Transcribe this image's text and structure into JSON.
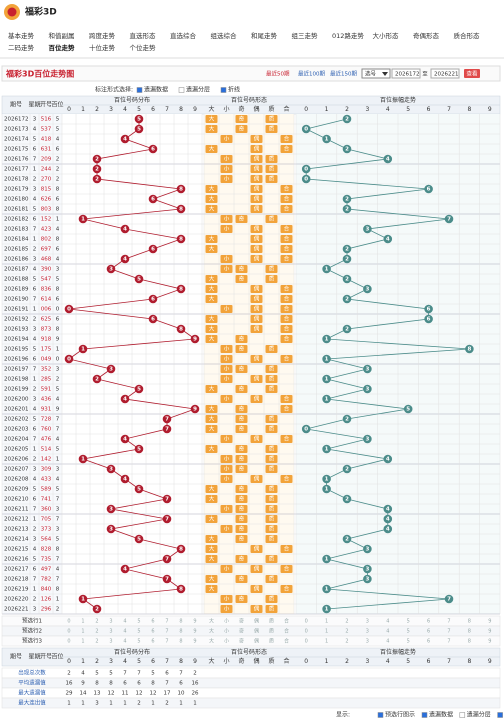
{
  "header": {
    "logo": "福彩3D"
  },
  "nav": {
    "items": [
      "基本走势",
      "和值副属",
      "跨度走势",
      "直选形态",
      "直选综合",
      "组选综合",
      "和尾走势",
      "组三走势",
      "012路走势",
      "大小形态",
      "奇偶形态",
      "质合形态",
      "二码走势",
      "百位走势",
      "十位走势",
      "个位走势"
    ],
    "per_row": 12,
    "active": 13
  },
  "toolbar": {
    "title": "福彩3D百位走势图",
    "recent": [
      "最近50期",
      "最近100期",
      "最近150期"
    ],
    "select": "选号",
    "from": "2026172",
    "to_label": "至",
    "to": "2026221",
    "button": "查看"
  },
  "options": {
    "label": "标注形式选择:",
    "items": [
      {
        "label": "遗漏数据",
        "checked": true
      },
      {
        "label": "遗漏分层",
        "checked": false
      },
      {
        "label": "折线",
        "checked": true
      }
    ]
  },
  "table": {
    "headers": [
      "期号",
      "星期",
      "开号",
      "百位"
    ],
    "groups": [
      "百位号码分布",
      "百位号码形态",
      "百位振幅走势"
    ],
    "digits": [
      0,
      1,
      2,
      3,
      4,
      5,
      6,
      7,
      8,
      9
    ],
    "forms": [
      "大",
      "小",
      "奇",
      "偶",
      "质",
      "合"
    ],
    "rows": [
      [
        2026172,
        3,
        "516",
        5,
        "大",
        "奇",
        "质",
        2
      ],
      [
        2026173,
        4,
        "537",
        5,
        "大",
        "奇",
        "质",
        0
      ],
      [
        2026174,
        5,
        "418",
        4,
        "小",
        "偶",
        "合",
        1
      ],
      [
        2026175,
        6,
        "631",
        6,
        "大",
        "偶",
        "合",
        2
      ],
      [
        2026176,
        7,
        "209",
        2,
        "小",
        "偶",
        "质",
        4
      ],
      [
        2026177,
        1,
        "244",
        2,
        "小",
        "偶",
        "质",
        0
      ],
      [
        2026178,
        2,
        "270",
        2,
        "小",
        "偶",
        "质",
        0
      ],
      [
        2026179,
        3,
        "815",
        8,
        "大",
        "偶",
        "合",
        6
      ],
      [
        2026180,
        4,
        "626",
        6,
        "大",
        "偶",
        "合",
        2
      ],
      [
        2026181,
        5,
        "803",
        8,
        "大",
        "偶",
        "合",
        2
      ],
      [
        2026182,
        6,
        "152",
        1,
        "小",
        "奇",
        "质",
        7
      ],
      [
        2026183,
        7,
        "423",
        4,
        "小",
        "偶",
        "合",
        3
      ],
      [
        2026184,
        1,
        "802",
        8,
        "大",
        "偶",
        "合",
        4
      ],
      [
        2026185,
        2,
        "697",
        6,
        "大",
        "偶",
        "合",
        2
      ],
      [
        2026186,
        3,
        "468",
        4,
        "小",
        "偶",
        "合",
        2
      ],
      [
        2026187,
        4,
        "390",
        3,
        "小",
        "奇",
        "质",
        1
      ],
      [
        2026188,
        5,
        "547",
        5,
        "大",
        "奇",
        "质",
        2
      ],
      [
        2026189,
        6,
        "836",
        8,
        "大",
        "偶",
        "合",
        3
      ],
      [
        2026190,
        7,
        "614",
        6,
        "大",
        "偶",
        "合",
        2
      ],
      [
        2026191,
        1,
        "006",
        0,
        "小",
        "偶",
        "合",
        6
      ],
      [
        2026192,
        2,
        "625",
        6,
        "大",
        "偶",
        "合",
        6
      ],
      [
        2026193,
        3,
        "873",
        8,
        "大",
        "偶",
        "合",
        2
      ],
      [
        2026194,
        4,
        "918",
        9,
        "大",
        "奇",
        "合",
        1
      ],
      [
        2026195,
        5,
        "175",
        1,
        "小",
        "奇",
        "质",
        8
      ],
      [
        2026196,
        6,
        "049",
        0,
        "小",
        "偶",
        "合",
        1
      ],
      [
        2026197,
        7,
        "352",
        3,
        "小",
        "奇",
        "质",
        3
      ],
      [
        2026198,
        1,
        "285",
        2,
        "小",
        "偶",
        "质",
        1
      ],
      [
        2026199,
        2,
        "591",
        5,
        "大",
        "奇",
        "质",
        3
      ],
      [
        2026200,
        3,
        "436",
        4,
        "小",
        "偶",
        "合",
        1
      ],
      [
        2026201,
        4,
        "931",
        9,
        "大",
        "奇",
        "合",
        5
      ],
      [
        2026202,
        5,
        "728",
        7,
        "大",
        "奇",
        "质",
        2
      ],
      [
        2026203,
        6,
        "760",
        7,
        "大",
        "奇",
        "质",
        0
      ],
      [
        2026204,
        7,
        "476",
        4,
        "小",
        "偶",
        "合",
        3
      ],
      [
        2026205,
        1,
        "514",
        5,
        "大",
        "奇",
        "质",
        1
      ],
      [
        2026206,
        2,
        "142",
        1,
        "小",
        "奇",
        "质",
        4
      ],
      [
        2026207,
        3,
        "309",
        3,
        "小",
        "奇",
        "质",
        2
      ],
      [
        2026208,
        4,
        "433",
        4,
        "小",
        "偶",
        "合",
        1
      ],
      [
        2026209,
        5,
        "589",
        5,
        "大",
        "奇",
        "质",
        1
      ],
      [
        2026210,
        6,
        "741",
        7,
        "大",
        "奇",
        "质",
        2
      ],
      [
        2026211,
        7,
        "360",
        3,
        "小",
        "奇",
        "质",
        4
      ],
      [
        2026212,
        1,
        "705",
        7,
        "大",
        "奇",
        "质",
        4
      ],
      [
        2026213,
        2,
        "373",
        3,
        "小",
        "奇",
        "质",
        4
      ],
      [
        2026214,
        3,
        "564",
        5,
        "大",
        "奇",
        "质",
        2
      ],
      [
        2026215,
        4,
        "828",
        8,
        "大",
        "偶",
        "合",
        3
      ],
      [
        2026216,
        5,
        "735",
        7,
        "大",
        "奇",
        "质",
        1
      ],
      [
        2026217,
        6,
        "497",
        4,
        "小",
        "偶",
        "合",
        3
      ],
      [
        2026218,
        7,
        "782",
        7,
        "大",
        "奇",
        "质",
        3
      ],
      [
        2026219,
        1,
        "840",
        8,
        "大",
        "偶",
        "合",
        1
      ],
      [
        2026220,
        2,
        "126",
        1,
        "小",
        "奇",
        "质",
        7
      ],
      [
        2026221,
        3,
        "296",
        2,
        "小",
        "偶",
        "质",
        1
      ]
    ],
    "ball_color": "#b01c2e",
    "amp_color": "#4b8c8a",
    "form_color": "#f2a33a"
  },
  "preselect": {
    "labels": [
      "预选行1",
      "预选行2",
      "预选行3"
    ]
  },
  "stats": [
    {
      "label": "出现总次数",
      "values": [
        2,
        4,
        5,
        5,
        7,
        7,
        5,
        6,
        7,
        2
      ]
    },
    {
      "label": "平均遗漏值",
      "values": [
        16,
        9,
        8,
        8,
        6,
        6,
        8,
        7,
        6,
        16
      ]
    },
    {
      "label": "最大遗漏值",
      "values": [
        29,
        14,
        13,
        12,
        11,
        12,
        12,
        17,
        10,
        26
      ]
    },
    {
      "label": "最大连出值",
      "values": [
        1,
        1,
        3,
        1,
        1,
        2,
        1,
        2,
        1,
        1
      ]
    }
  ],
  "legend": {
    "label": "显示:",
    "items": [
      {
        "label": "预选行图示",
        "checked": true
      },
      {
        "label": "遗漏数据",
        "checked": true
      },
      {
        "label": "遗漏分层",
        "checked": false
      },
      {
        "label": "折线",
        "checked": true
      }
    ]
  }
}
